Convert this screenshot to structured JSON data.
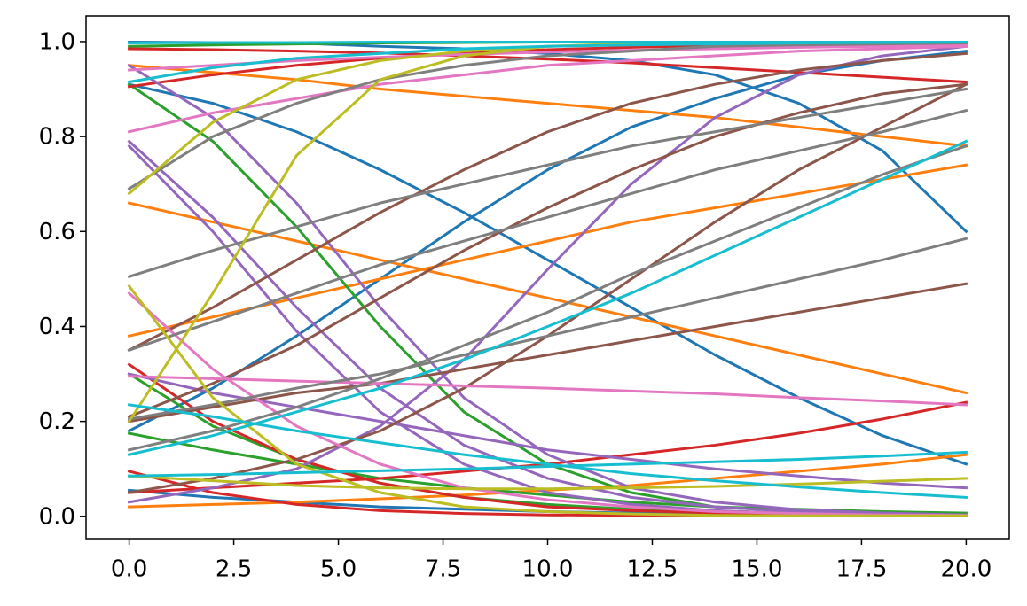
{
  "chart_data": {
    "type": "line",
    "x": [
      0,
      2,
      4,
      6,
      8,
      10,
      12,
      14,
      16,
      18,
      20
    ],
    "xlim": [
      -1.03,
      21.03
    ],
    "ylim": [
      -0.047,
      1.054
    ],
    "xticks": [
      {
        "value": 0,
        "label": "0.0"
      },
      {
        "value": 2.5,
        "label": "2.5"
      },
      {
        "value": 5,
        "label": "5.0"
      },
      {
        "value": 7.5,
        "label": "7.5"
      },
      {
        "value": 10,
        "label": "10.0"
      },
      {
        "value": 12.5,
        "label": "12.5"
      },
      {
        "value": 15,
        "label": "15.0"
      },
      {
        "value": 17.5,
        "label": "17.5"
      },
      {
        "value": 20,
        "label": "20.0"
      }
    ],
    "yticks": [
      {
        "value": 0,
        "label": "0.0"
      },
      {
        "value": 0.2,
        "label": "0.2"
      },
      {
        "value": 0.4,
        "label": "0.4"
      },
      {
        "value": 0.6,
        "label": "0.6"
      },
      {
        "value": 0.8,
        "label": "0.8"
      },
      {
        "value": 1,
        "label": "1.0"
      }
    ],
    "grid": false,
    "series": [
      {
        "color": "#1f77b4",
        "values": [
          0.91,
          0.87,
          0.81,
          0.73,
          0.64,
          0.54,
          0.44,
          0.34,
          0.25,
          0.17,
          0.11
        ]
      },
      {
        "color": "#1f77b4",
        "values": [
          0.999,
          0.998,
          0.997,
          0.99,
          0.985,
          0.975,
          0.96,
          0.93,
          0.87,
          0.77,
          0.6
        ]
      },
      {
        "color": "#1f77b4",
        "values": [
          0.18,
          0.27,
          0.38,
          0.5,
          0.62,
          0.73,
          0.82,
          0.88,
          0.93,
          0.96,
          0.98
        ]
      },
      {
        "color": "#1f77b4",
        "values": [
          0.055,
          0.04,
          0.03,
          0.02,
          0.015,
          0.01,
          0.007,
          0.005,
          0.003,
          0.002,
          0.001
        ]
      },
      {
        "color": "#ff7f0e",
        "values": [
          0.95,
          0.935,
          0.92,
          0.9,
          0.885,
          0.87,
          0.855,
          0.84,
          0.82,
          0.8,
          0.78
        ]
      },
      {
        "color": "#ff7f0e",
        "values": [
          0.66,
          0.62,
          0.58,
          0.54,
          0.5,
          0.46,
          0.42,
          0.38,
          0.34,
          0.3,
          0.26
        ]
      },
      {
        "color": "#ff7f0e",
        "values": [
          0.38,
          0.42,
          0.46,
          0.5,
          0.54,
          0.58,
          0.62,
          0.65,
          0.68,
          0.71,
          0.74
        ]
      },
      {
        "color": "#ff7f0e",
        "values": [
          0.02,
          0.025,
          0.03,
          0.037,
          0.045,
          0.055,
          0.065,
          0.08,
          0.095,
          0.11,
          0.13
        ]
      },
      {
        "color": "#2ca02c",
        "values": [
          0.91,
          0.79,
          0.61,
          0.4,
          0.22,
          0.11,
          0.05,
          0.02,
          0.01,
          0.005,
          0.002
        ]
      },
      {
        "color": "#2ca02c",
        "values": [
          0.3,
          0.19,
          0.12,
          0.07,
          0.04,
          0.025,
          0.015,
          0.009,
          0.005,
          0.003,
          0.002
        ]
      },
      {
        "color": "#2ca02c",
        "values": [
          0.175,
          0.14,
          0.11,
          0.08,
          0.06,
          0.045,
          0.03,
          0.02,
          0.015,
          0.01,
          0.007
        ]
      },
      {
        "color": "#2ca02c",
        "values": [
          0.99,
          0.993,
          0.995,
          0.997,
          0.998,
          0.999,
          0.999,
          0.999,
          0.999,
          0.999,
          0.999
        ]
      },
      {
        "color": "#d62728",
        "values": [
          0.32,
          0.2,
          0.12,
          0.07,
          0.04,
          0.02,
          0.012,
          0.007,
          0.004,
          0.002,
          0.001
        ]
      },
      {
        "color": "#d62728",
        "values": [
          0.05,
          0.06,
          0.07,
          0.08,
          0.095,
          0.11,
          0.13,
          0.15,
          0.175,
          0.205,
          0.24
        ]
      },
      {
        "color": "#d62728",
        "values": [
          0.095,
          0.05,
          0.025,
          0.012,
          0.006,
          0.003,
          0.002,
          0.001,
          0.001,
          0.001,
          0.001
        ]
      },
      {
        "color": "#d62728",
        "values": [
          0.905,
          0.93,
          0.95,
          0.965,
          0.975,
          0.983,
          0.988,
          0.992,
          0.995,
          0.996,
          0.997
        ]
      },
      {
        "color": "#d62728",
        "values": [
          0.985,
          0.983,
          0.98,
          0.976,
          0.97,
          0.963,
          0.955,
          0.945,
          0.935,
          0.925,
          0.915
        ]
      },
      {
        "color": "#9467bd",
        "values": [
          0.79,
          0.63,
          0.44,
          0.27,
          0.15,
          0.08,
          0.04,
          0.02,
          0.01,
          0.005,
          0.003
        ]
      },
      {
        "color": "#9467bd",
        "values": [
          0.78,
          0.6,
          0.39,
          0.22,
          0.11,
          0.05,
          0.025,
          0.012,
          0.006,
          0.003,
          0.001
        ]
      },
      {
        "color": "#9467bd",
        "values": [
          0.95,
          0.84,
          0.66,
          0.44,
          0.25,
          0.13,
          0.06,
          0.03,
          0.014,
          0.007,
          0.003
        ]
      },
      {
        "color": "#9467bd",
        "values": [
          0.3,
          0.26,
          0.23,
          0.2,
          0.17,
          0.14,
          0.12,
          0.1,
          0.085,
          0.07,
          0.06
        ]
      },
      {
        "color": "#9467bd",
        "values": [
          0.03,
          0.06,
          0.1,
          0.19,
          0.33,
          0.52,
          0.7,
          0.84,
          0.93,
          0.97,
          0.99
        ]
      },
      {
        "color": "#8c564b",
        "values": [
          0.35,
          0.44,
          0.54,
          0.64,
          0.73,
          0.81,
          0.87,
          0.91,
          0.94,
          0.96,
          0.975
        ]
      },
      {
        "color": "#8c564b",
        "values": [
          0.21,
          0.28,
          0.36,
          0.46,
          0.56,
          0.65,
          0.73,
          0.8,
          0.85,
          0.89,
          0.91
        ]
      },
      {
        "color": "#8c564b",
        "values": [
          0.05,
          0.08,
          0.12,
          0.18,
          0.27,
          0.38,
          0.5,
          0.62,
          0.73,
          0.82,
          0.91
        ]
      },
      {
        "color": "#8c564b",
        "values": [
          0.2,
          0.23,
          0.26,
          0.28,
          0.31,
          0.34,
          0.37,
          0.4,
          0.43,
          0.46,
          0.49
        ]
      },
      {
        "color": "#e377c2",
        "values": [
          0.81,
          0.85,
          0.88,
          0.91,
          0.93,
          0.95,
          0.96,
          0.97,
          0.98,
          0.985,
          0.99
        ]
      },
      {
        "color": "#e377c2",
        "values": [
          0.94,
          0.95,
          0.96,
          0.967,
          0.973,
          0.978,
          0.982,
          0.985,
          0.988,
          0.99,
          0.992
        ]
      },
      {
        "color": "#e377c2",
        "values": [
          0.47,
          0.31,
          0.19,
          0.11,
          0.06,
          0.035,
          0.02,
          0.01,
          0.006,
          0.003,
          0.002
        ]
      },
      {
        "color": "#e377c2",
        "values": [
          0.295,
          0.29,
          0.285,
          0.28,
          0.275,
          0.27,
          0.264,
          0.258,
          0.25,
          0.243,
          0.235
        ]
      },
      {
        "color": "#7f7f7f",
        "values": [
          0.69,
          0.8,
          0.87,
          0.92,
          0.95,
          0.97,
          0.98,
          0.99,
          0.993,
          0.995,
          0.997
        ]
      },
      {
        "color": "#7f7f7f",
        "values": [
          0.505,
          0.56,
          0.61,
          0.66,
          0.7,
          0.74,
          0.78,
          0.81,
          0.84,
          0.87,
          0.9
        ]
      },
      {
        "color": "#7f7f7f",
        "values": [
          0.35,
          0.41,
          0.47,
          0.53,
          0.58,
          0.63,
          0.68,
          0.73,
          0.77,
          0.81,
          0.855
        ]
      },
      {
        "color": "#7f7f7f",
        "values": [
          0.205,
          0.235,
          0.27,
          0.3,
          0.34,
          0.38,
          0.42,
          0.46,
          0.5,
          0.54,
          0.585
        ]
      },
      {
        "color": "#7f7f7f",
        "values": [
          0.14,
          0.18,
          0.23,
          0.29,
          0.36,
          0.43,
          0.51,
          0.58,
          0.65,
          0.72,
          0.78
        ]
      },
      {
        "color": "#bcbd22",
        "values": [
          0.68,
          0.83,
          0.92,
          0.96,
          0.98,
          0.99,
          0.995,
          0.997,
          0.998,
          0.999,
          0.999
        ]
      },
      {
        "color": "#bcbd22",
        "values": [
          0.2,
          0.47,
          0.76,
          0.92,
          0.97,
          0.99,
          0.996,
          0.998,
          0.999,
          0.999,
          0.999
        ]
      },
      {
        "color": "#bcbd22",
        "values": [
          0.485,
          0.25,
          0.11,
          0.05,
          0.02,
          0.01,
          0.005,
          0.002,
          0.001,
          0.001,
          0.001
        ]
      },
      {
        "color": "#bcbd22",
        "values": [
          0.085,
          0.075,
          0.065,
          0.06,
          0.058,
          0.058,
          0.06,
          0.063,
          0.068,
          0.074,
          0.08
        ]
      },
      {
        "color": "#17becf",
        "values": [
          0.915,
          0.945,
          0.965,
          0.975,
          0.985,
          0.99,
          0.993,
          0.995,
          0.997,
          0.998,
          0.999
        ]
      },
      {
        "color": "#17becf",
        "values": [
          0.13,
          0.17,
          0.22,
          0.27,
          0.33,
          0.4,
          0.47,
          0.55,
          0.63,
          0.71,
          0.79
        ]
      },
      {
        "color": "#17becf",
        "values": [
          0.235,
          0.21,
          0.18,
          0.155,
          0.13,
          0.11,
          0.09,
          0.075,
          0.062,
          0.05,
          0.04
        ]
      },
      {
        "color": "#17becf",
        "values": [
          0.085,
          0.088,
          0.092,
          0.096,
          0.1,
          0.105,
          0.11,
          0.115,
          0.12,
          0.127,
          0.135
        ]
      },
      {
        "color": "#17becf",
        "values": [
          0.997,
          0.998,
          0.998,
          0.999,
          0.999,
          0.999,
          0.999,
          0.999,
          0.999,
          0.999,
          0.999
        ]
      }
    ]
  }
}
